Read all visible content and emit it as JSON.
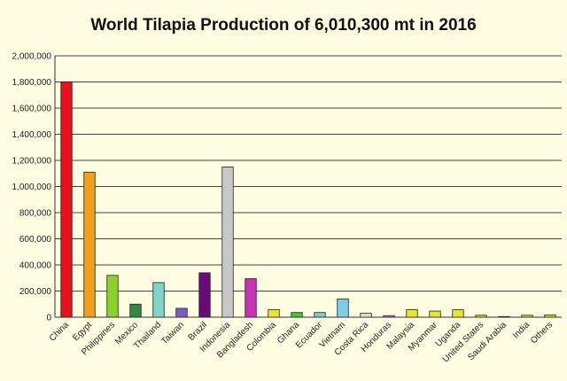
{
  "chart_data": {
    "type": "bar",
    "title": "World Tilapia Production of  6,010,300 mt in 2016",
    "xlabel": "",
    "ylabel": "",
    "ylim": [
      0,
      2000000
    ],
    "yticks": [
      0,
      200000,
      400000,
      600000,
      800000,
      1000000,
      1200000,
      1400000,
      1600000,
      1800000,
      2000000
    ],
    "ytick_labels": [
      "0",
      "200,000",
      "400,000",
      "600,000",
      "800,000",
      "1,000,000",
      "1,200,000",
      "1,400,000",
      "1,600,000",
      "1,800,000",
      "2,000,000"
    ],
    "grid": true,
    "legend": "none",
    "categories": [
      "China",
      "Egypt",
      "Philippines",
      "Mexico",
      "Thailand",
      "Taiwan",
      "Brazil",
      "Indonesia",
      "Bangladesh",
      "Colombia",
      "Ghana",
      "Ecuador",
      "Vietnam",
      "Costa Rica",
      "Honduras",
      "Malaysia",
      "Myanmar",
      "Uganda",
      "United States",
      "Saudi Arabia",
      "India",
      "Others"
    ],
    "values": [
      1800000,
      1110000,
      320000,
      100000,
      265000,
      68000,
      340000,
      1150000,
      295000,
      58000,
      36000,
      36000,
      140000,
      30000,
      12000,
      58000,
      47000,
      57000,
      15000,
      5000,
      15000,
      17000
    ],
    "colors": [
      "#e8101a",
      "#f2a01a",
      "#8cd02a",
      "#2e8a3e",
      "#80d4c8",
      "#7d5cc2",
      "#6a0a7a",
      "#c8c8c8",
      "#c832b4",
      "#e6e632",
      "#46c832",
      "#80ccc8",
      "#80cce8",
      "#c8e6c8",
      "#c878dc",
      "#e6e632",
      "#e6e632",
      "#e6e632",
      "#c8e632",
      "#e6e632",
      "#c8e632",
      "#c8e632"
    ]
  }
}
